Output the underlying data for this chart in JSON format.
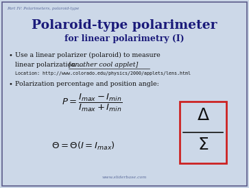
{
  "bg_color": "#ccd8e8",
  "border_color": "#5a5a8a",
  "title_line1": "Polaroid-type polarimeter",
  "title_line2": "for linear polarimetry (I)",
  "title_color": "#1a1a7a",
  "subtitle_color": "#1a1a7a",
  "header_text": "Part IV: Polarimeters, polaroid-type",
  "header_color": "#5a6a9a",
  "location_text": "Location: http://www.colorado.edu/physics/2000/applets/lens.html",
  "bullet2_text": "Polarization percentage and position angle:",
  "footer_text": "www.sliderbase.com",
  "text_color": "#111111",
  "bullet_color": "#111111",
  "box_color": "#cc2222",
  "box_fill": "#ccd8e8"
}
